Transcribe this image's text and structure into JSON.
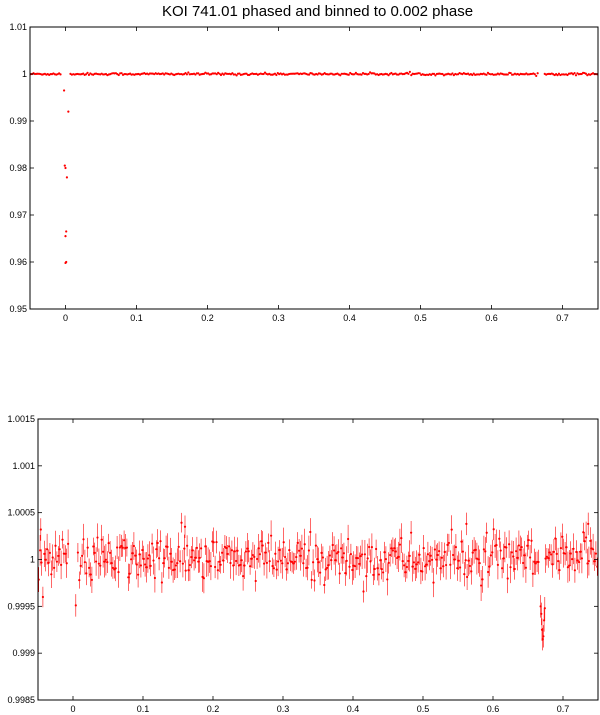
{
  "title": "KOI 741.01 phased and binned to 0.002 phase",
  "chart_data": [
    {
      "type": "scatter",
      "title": "KOI 741.01 phased and binned to 0.002 phase",
      "xlabel": "",
      "ylabel": "",
      "xlim": [
        -0.05,
        0.75
      ],
      "ylim": [
        0.95,
        1.01
      ],
      "xticks": [
        0,
        0.1,
        0.2,
        0.3,
        0.4,
        0.5,
        0.6,
        0.7
      ],
      "yticks": [
        0.95,
        0.96,
        0.97,
        0.98,
        0.99,
        1,
        1.01
      ],
      "xtick_labels": [
        "0",
        "0.1",
        "0.2",
        "0.3",
        "0.4",
        "0.5",
        "0.6",
        "0.7"
      ],
      "ytick_labels": [
        "0.95",
        "0.96",
        "0.97",
        "0.98",
        "0.99",
        "1",
        "1.01"
      ],
      "marker_color": "#ff0000",
      "baseline_flux": 1.0,
      "secondary_eclipse": {
        "phase_center": 0.671,
        "depth": 0.0009
      },
      "points": [
        {
          "x": -0.002,
          "y": 0.9965
        },
        {
          "x": -0.001,
          "y": 0.9805
        },
        {
          "x": 0.0,
          "y": 0.98
        },
        {
          "x": 0.0,
          "y": 0.9655
        },
        {
          "x": 0.001,
          "y": 0.9665
        },
        {
          "x": 0.0,
          "y": 0.9598
        },
        {
          "x": 0.001,
          "y": 0.96
        },
        {
          "x": 0.002,
          "y": 0.978
        },
        {
          "x": 0.004,
          "y": 0.992
        }
      ]
    },
    {
      "type": "scatter",
      "title": "",
      "xlabel": "",
      "ylabel": "",
      "xlim": [
        -0.05,
        0.75
      ],
      "ylim": [
        0.9985,
        1.0015
      ],
      "xticks": [
        0,
        0.1,
        0.2,
        0.3,
        0.4,
        0.5,
        0.6,
        0.7
      ],
      "yticks": [
        0.9985,
        0.999,
        0.9995,
        1,
        1.0005,
        1.001,
        1.0015
      ],
      "xtick_labels": [
        "0",
        "0.1",
        "0.2",
        "0.3",
        "0.4",
        "0.5",
        "0.6",
        "0.7"
      ],
      "ytick_labels": [
        "0.9985",
        "0.999",
        "0.9995",
        "1",
        "1.0005",
        "1.001",
        "1.0015"
      ],
      "marker_color": "#ff0000",
      "baseline_flux": 1.0,
      "scatter_sigma": 0.00012,
      "secondary_eclipse": {
        "phase_center": 0.671,
        "depth": 0.0009
      },
      "points": [
        {
          "x": 0.004,
          "y": 0.99951
        },
        {
          "x": -0.046,
          "y": 1.00032
        },
        {
          "x": 0.16,
          "y": 1.00035
        },
        {
          "x": 0.562,
          "y": 1.00038
        },
        {
          "x": 0.736,
          "y": 1.00038
        },
        {
          "x": 0.668,
          "y": 0.9995
        },
        {
          "x": 0.669,
          "y": 0.99942
        },
        {
          "x": 0.67,
          "y": 0.99925
        },
        {
          "x": 0.671,
          "y": 0.99915
        },
        {
          "x": 0.672,
          "y": 0.99918
        },
        {
          "x": 0.673,
          "y": 0.99935
        },
        {
          "x": 0.674,
          "y": 0.99948
        }
      ]
    }
  ]
}
